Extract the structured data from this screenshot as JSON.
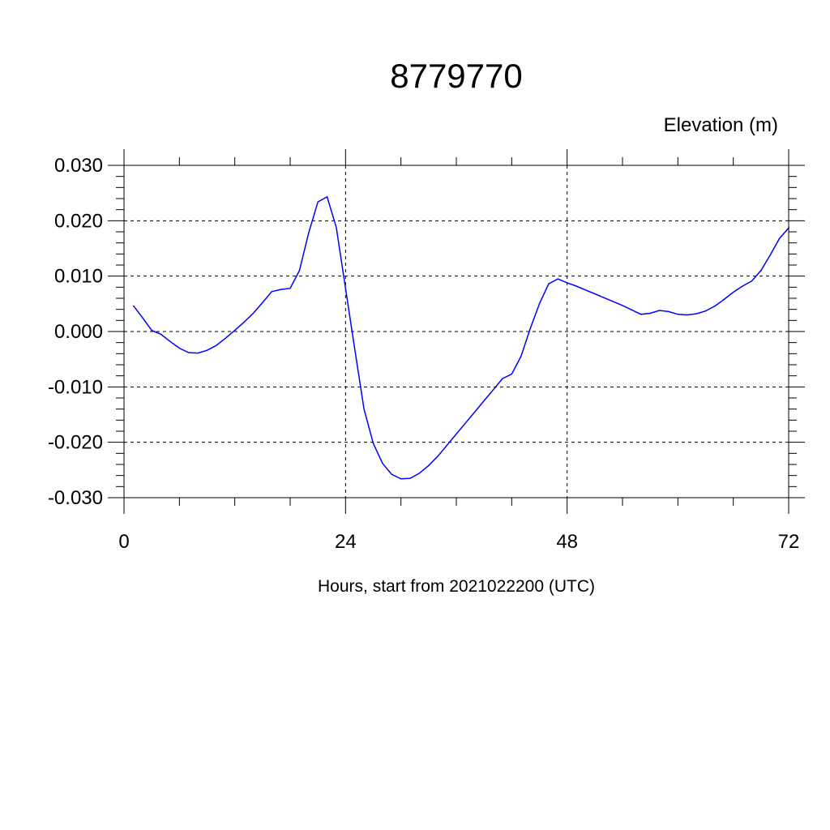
{
  "chart_data": {
    "type": "line",
    "title": "8779770",
    "subtitle": "Elevation (m)",
    "xlabel": "Hours, start from 2021022200 (UTC)",
    "ylabel": "",
    "xlim": [
      0,
      72
    ],
    "ylim": [
      -0.03,
      0.03
    ],
    "x_ticks": [
      0,
      24,
      48,
      72
    ],
    "x_tick_labels": [
      "0",
      "24",
      "48",
      "72"
    ],
    "y_ticks": [
      -0.03,
      -0.02,
      -0.01,
      0.0,
      0.01,
      0.02,
      0.03
    ],
    "y_tick_labels": [
      "-0.030",
      "-0.020",
      "-0.010",
      "0.000",
      "0.010",
      "0.020",
      "0.030"
    ],
    "grid": true,
    "grid_style": "dashed",
    "line_color": "#0000ff",
    "series": [
      {
        "x": [
          1,
          2,
          3,
          4,
          5,
          6,
          7,
          8,
          9,
          10,
          11,
          12,
          13,
          14,
          15,
          16,
          17,
          18,
          19,
          20,
          21,
          22,
          23,
          24,
          25,
          26,
          27,
          28,
          29,
          30,
          31,
          32,
          33,
          34,
          35,
          36,
          37,
          38,
          39,
          40,
          41,
          42,
          43,
          44,
          45,
          46,
          47,
          48,
          49,
          50,
          51,
          52,
          53,
          54,
          55,
          56,
          57,
          58,
          59,
          60,
          61,
          62,
          63,
          64,
          65,
          66,
          67,
          68,
          69,
          70,
          71,
          72
        ],
        "values": [
          0.0047,
          0.0025,
          0.0002,
          -0.0005,
          -0.0018,
          -0.003,
          -0.0038,
          -0.0039,
          -0.0034,
          -0.0025,
          -0.0012,
          0.0002,
          0.0017,
          0.0033,
          0.0052,
          0.0072,
          0.0076,
          0.0078,
          0.011,
          0.0178,
          0.0234,
          0.0243,
          0.0188,
          0.0078,
          -0.0032,
          -0.014,
          -0.0202,
          -0.0238,
          -0.0258,
          -0.0266,
          -0.0265,
          -0.0256,
          -0.0242,
          -0.0225,
          -0.0205,
          -0.0185,
          -0.0165,
          -0.0145,
          -0.0125,
          -0.0105,
          -0.0085,
          -0.0077,
          -0.0045,
          0.0005,
          0.005,
          0.0086,
          0.0095,
          0.0088,
          0.0082,
          0.0075,
          0.0068,
          0.0061,
          0.0054,
          0.0047,
          0.0039,
          0.0031,
          0.0033,
          0.0038,
          0.0036,
          0.0031,
          0.003,
          0.0032,
          0.0037,
          0.0046,
          0.0058,
          0.0071,
          0.0082,
          0.0091,
          0.011,
          0.0138,
          0.0168,
          0.0187
        ]
      }
    ],
    "extra_points": [
      [
        72.0,
        0.0185
      ]
    ]
  }
}
